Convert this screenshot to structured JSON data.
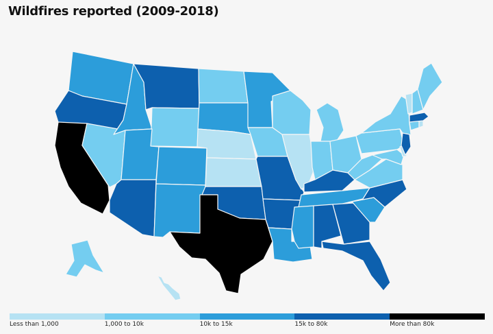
{
  "title": "Wildfires reported (2009-2018)",
  "colors": {
    "background": "#f6f6f6",
    "less_than_1000": "#b6e2f3",
    "1000_to_10k": "#74cdf0",
    "10k_to_15k": "#2c9dda",
    "15k_to_80k": "#0d60ae",
    "more_than_80k": "#000000"
  },
  "legend": [
    {
      "label": "Less than 1,000",
      "color": "#b6e2f3"
    },
    {
      "label": "1,000 to 10k",
      "color": "#74cdf0"
    },
    {
      "label": "10k to 15k",
      "color": "#2c9dda"
    },
    {
      "label": "15k to 80k",
      "color": "#0d60ae"
    },
    {
      "label": "More than 80k",
      "color": "#000000"
    }
  ],
  "states": [
    {
      "name": "California",
      "category": "More than 80k"
    },
    {
      "name": "Texas",
      "category": "More than 80k"
    },
    {
      "name": "Oregon",
      "category": "15k to 80k"
    },
    {
      "name": "Montana",
      "category": "15k to 80k"
    },
    {
      "name": "Arizona",
      "category": "15k to 80k"
    },
    {
      "name": "Oklahoma",
      "category": "15k to 80k"
    },
    {
      "name": "Arkansas",
      "category": "15k to 80k"
    },
    {
      "name": "Missouri",
      "category": "15k to 80k"
    },
    {
      "name": "Kentucky",
      "category": "15k to 80k"
    },
    {
      "name": "Alabama",
      "category": "15k to 80k"
    },
    {
      "name": "Georgia",
      "category": "15k to 80k"
    },
    {
      "name": "Florida",
      "category": "15k to 80k"
    },
    {
      "name": "North Carolina",
      "category": "15k to 80k"
    },
    {
      "name": "New Jersey",
      "category": "15k to 80k"
    },
    {
      "name": "Massachusetts",
      "category": "15k to 80k"
    },
    {
      "name": "Washington",
      "category": "10k to 15k"
    },
    {
      "name": "Idaho",
      "category": "10k to 15k"
    },
    {
      "name": "Utah",
      "category": "10k to 15k"
    },
    {
      "name": "Colorado",
      "category": "10k to 15k"
    },
    {
      "name": "New Mexico",
      "category": "10k to 15k"
    },
    {
      "name": "South Dakota",
      "category": "10k to 15k"
    },
    {
      "name": "Minnesota",
      "category": "10k to 15k"
    },
    {
      "name": "Mississippi",
      "category": "10k to 15k"
    },
    {
      "name": "Louisiana",
      "category": "10k to 15k"
    },
    {
      "name": "Tennessee",
      "category": "10k to 15k"
    },
    {
      "name": "South Carolina",
      "category": "10k to 15k"
    },
    {
      "name": "Nevada",
      "category": "1,000 to 10k"
    },
    {
      "name": "Wyoming",
      "category": "1,000 to 10k"
    },
    {
      "name": "North Dakota",
      "category": "1,000 to 10k"
    },
    {
      "name": "Iowa",
      "category": "1,000 to 10k"
    },
    {
      "name": "Wisconsin",
      "category": "1,000 to 10k"
    },
    {
      "name": "Michigan",
      "category": "1,000 to 10k"
    },
    {
      "name": "Indiana",
      "category": "1,000 to 10k"
    },
    {
      "name": "Ohio",
      "category": "1,000 to 10k"
    },
    {
      "name": "Pennsylvania",
      "category": "1,000 to 10k"
    },
    {
      "name": "New York",
      "category": "1,000 to 10k"
    },
    {
      "name": "West Virginia",
      "category": "1,000 to 10k"
    },
    {
      "name": "Virginia",
      "category": "1,000 to 10k"
    },
    {
      "name": "Maine",
      "category": "1,000 to 10k"
    },
    {
      "name": "New Hampshire",
      "category": "1,000 to 10k"
    },
    {
      "name": "Connecticut",
      "category": "1,000 to 10k"
    },
    {
      "name": "Maryland",
      "category": "1,000 to 10k"
    },
    {
      "name": "Alaska",
      "category": "1,000 to 10k"
    },
    {
      "name": "Nebraska",
      "category": "Less than 1,000"
    },
    {
      "name": "Kansas",
      "category": "Less than 1,000"
    },
    {
      "name": "Illinois",
      "category": "Less than 1,000"
    },
    {
      "name": "Vermont",
      "category": "Less than 1,000"
    },
    {
      "name": "Delaware",
      "category": "Less than 1,000"
    },
    {
      "name": "Rhode Island",
      "category": "Less than 1,000"
    },
    {
      "name": "Hawaii",
      "category": "Less than 1,000"
    }
  ]
}
